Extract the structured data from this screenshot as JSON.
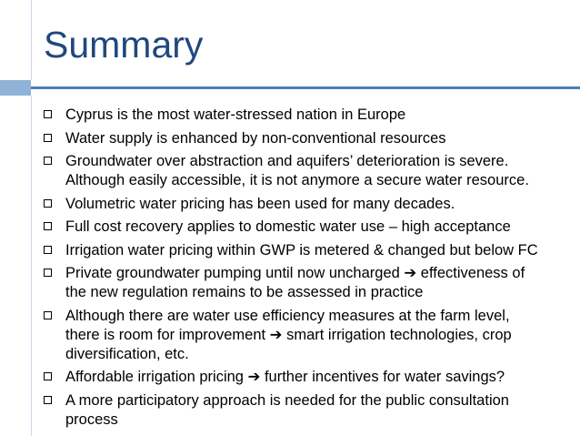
{
  "slide": {
    "title": "Summary",
    "bullets": [
      {
        "lines": [
          "Cyprus is the most water-stressed nation in Europe"
        ]
      },
      {
        "lines": [
          "Water supply is enhanced by non-conventional resources"
        ]
      },
      {
        "lines": [
          "Groundwater over abstraction and aquifers’ deterioration is severe.",
          "Although easily accessible, it is not anymore a secure water resource."
        ]
      },
      {
        "lines": [
          "Volumetric water pricing has been used for many decades."
        ]
      },
      {
        "lines": [
          "Full cost recovery applies to domestic water use – high acceptance"
        ]
      },
      {
        "lines": [
          "Irrigation water pricing within GWP is metered & changed but below FC"
        ]
      },
      {
        "lines": [
          "Private groundwater pumping until now uncharged ➔ effectiveness of",
          "the new regulation remains to be assessed in practice"
        ]
      },
      {
        "lines": [
          "Although there are water use efficiency measures at the farm level,",
          "there is room for improvement ➔ smart irrigation technologies, crop",
          "diversification, etc."
        ]
      },
      {
        "lines": [
          "Affordable irrigation pricing ➔ further incentives for water savings?"
        ]
      },
      {
        "lines": [
          "A more participatory approach is needed for the public consultation",
          "process"
        ]
      }
    ]
  },
  "colors": {
    "title": "#1f497d",
    "accent_bar": "#8fb2d6",
    "accent_line": "#4a7ebb"
  }
}
